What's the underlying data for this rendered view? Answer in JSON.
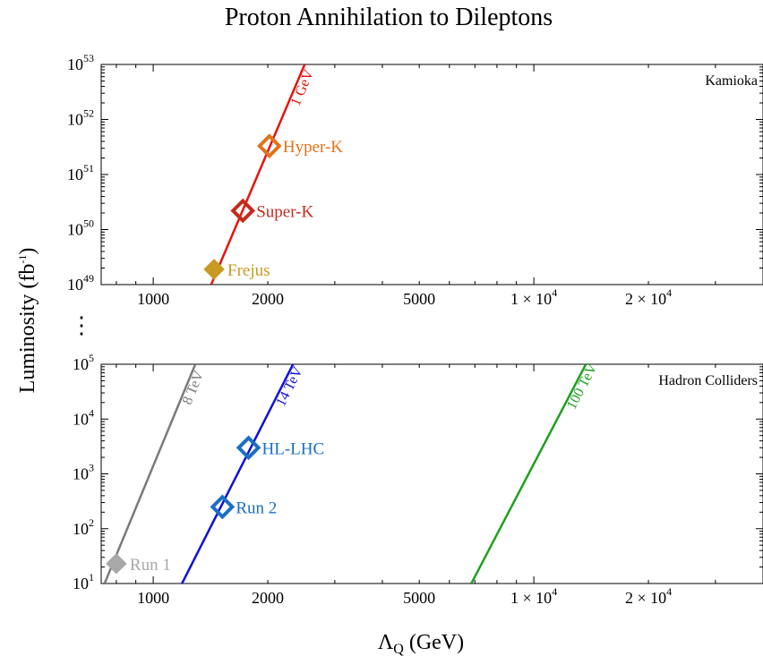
{
  "title": "Proton Annihilation to Dileptons",
  "xlabel": "Λ_Q (GeV)",
  "xlabel_main": "Λ",
  "xlabel_sub": "Q",
  "xlabel_unit": " (GeV)",
  "ylabel": "Luminosity (fb⁻¹)",
  "ylabel_main": "Luminosity (fb",
  "ylabel_sup": "-1",
  "ylabel_end": ")",
  "ellipsis": "⋮",
  "chart_data": [
    {
      "type": "line",
      "panel": "Kamioka",
      "xscale": "log",
      "yscale": "log",
      "xlim": [
        730,
        40000
      ],
      "ylim": [
        1e+49,
        1e+53
      ],
      "xticks": [
        {
          "value": 1000,
          "label": "1000"
        },
        {
          "value": 2000,
          "label": "2000"
        },
        {
          "value": 5000,
          "label": "5000"
        },
        {
          "value": 10000,
          "mant": "1 × 10",
          "exp": "4"
        },
        {
          "value": 20000,
          "mant": "2 × 10",
          "exp": "4"
        }
      ],
      "yticks": [
        {
          "value": 1e+49,
          "base": "10",
          "exp": "49"
        },
        {
          "value": 1e+50,
          "base": "10",
          "exp": "50"
        },
        {
          "value": 1e+51,
          "base": "10",
          "exp": "51"
        },
        {
          "value": 1e+52,
          "base": "10",
          "exp": "52"
        },
        {
          "value": 1e+53,
          "base": "10",
          "exp": "53"
        }
      ],
      "series": [
        {
          "name": "1 GeV",
          "color": "#e8120c",
          "points": [
            [
              1420,
              1e+49
            ],
            [
              2500,
              1e+53
            ]
          ]
        }
      ],
      "markers": [
        {
          "label": "Hyper-K",
          "color": "#e0731b",
          "x": 2020,
          "y": 3.3e+51,
          "filled": false
        },
        {
          "label": "Super-K",
          "color": "#c42a1b",
          "x": 1720,
          "y": 2.2e+50,
          "filled": false
        },
        {
          "label": "Frejus",
          "color": "#c99a22",
          "x": 1445,
          "y": 1.9e+49,
          "filled": true
        }
      ]
    },
    {
      "type": "line",
      "panel": "Hadron Colliders",
      "xscale": "log",
      "yscale": "log",
      "xlim": [
        730,
        40000
      ],
      "ylim": [
        10,
        100000
      ],
      "xticks": [
        {
          "value": 1000,
          "label": "1000"
        },
        {
          "value": 2000,
          "label": "2000"
        },
        {
          "value": 5000,
          "label": "5000"
        },
        {
          "value": 10000,
          "mant": "1 × 10",
          "exp": "4"
        },
        {
          "value": 20000,
          "mant": "2 × 10",
          "exp": "4"
        }
      ],
      "yticks": [
        {
          "value": 10,
          "base": "10",
          "exp": "1"
        },
        {
          "value": 100,
          "base": "10",
          "exp": "2"
        },
        {
          "value": 1000,
          "base": "10",
          "exp": "3"
        },
        {
          "value": 10000,
          "base": "10",
          "exp": "4"
        },
        {
          "value": 100000,
          "base": "10",
          "exp": "5"
        }
      ],
      "series": [
        {
          "name": "8 TeV",
          "color": "#7a7a7a",
          "points": [
            [
              745,
              10
            ],
            [
              1290,
              100000
            ]
          ]
        },
        {
          "name": "14 TeV",
          "color": "#1010d8",
          "points": [
            [
              1190,
              10
            ],
            [
              2330,
              100000
            ]
          ]
        },
        {
          "name": "100 TeV",
          "color": "#1ea01e",
          "points": [
            [
              6850,
              10
            ],
            [
              13700,
              100000
            ]
          ]
        }
      ],
      "markers": [
        {
          "label": "HL-LHC",
          "color": "#1a6fc4",
          "x": 1780,
          "y": 3000,
          "filled": false
        },
        {
          "label": "Run 2",
          "color": "#1a6fc4",
          "x": 1520,
          "y": 250,
          "filled": false
        },
        {
          "label": "Run 1",
          "color": "#a8a8a8",
          "x": 800,
          "y": 23,
          "filled": true
        }
      ]
    }
  ]
}
